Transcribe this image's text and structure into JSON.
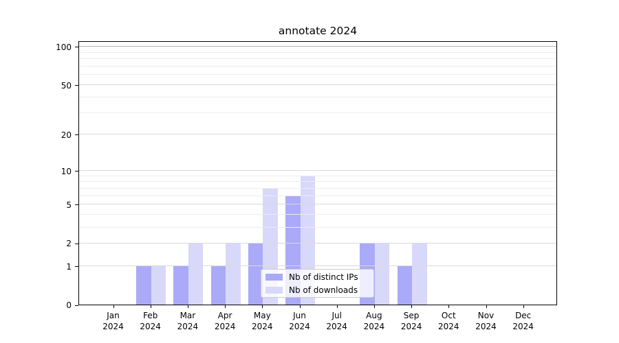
{
  "figure": {
    "title": "annotate 2024"
  },
  "chart_data": {
    "type": "bar",
    "title": "annotate 2024",
    "categories": [
      "Jan 2024",
      "Feb 2024",
      "Mar 2024",
      "Apr 2024",
      "May 2024",
      "Jun 2024",
      "Jul 2024",
      "Aug 2024",
      "Sep 2024",
      "Oct 2024",
      "Nov 2024",
      "Dec 2024"
    ],
    "series": [
      {
        "name": "Nb of distinct IPs",
        "color": "#aaaaf8",
        "values": [
          0,
          1,
          1,
          1,
          2,
          6,
          0,
          2,
          1,
          0,
          0,
          0
        ]
      },
      {
        "name": "Nb of downloads",
        "color": "#d8d8fa",
        "values": [
          0,
          1,
          2,
          2,
          7,
          9,
          0,
          2,
          2,
          0,
          0,
          0
        ]
      }
    ],
    "xlabel": "",
    "ylabel": "",
    "yscale": "log1p",
    "y_ticks": [
      0,
      1,
      2,
      5,
      10,
      20,
      50,
      100
    ],
    "y_minor_ticks": [
      3,
      4,
      6,
      7,
      8,
      9,
      30,
      40,
      60,
      70,
      80,
      90
    ],
    "ylim": [
      0,
      111.6
    ],
    "grid": true,
    "legend_position": "lower center"
  },
  "colors": {
    "grid_major": "#d9d9d9",
    "grid_minor": "#ededed",
    "grid_top": "#b3b3b3",
    "spine": "#000000",
    "legend_border": "#cccccc"
  }
}
